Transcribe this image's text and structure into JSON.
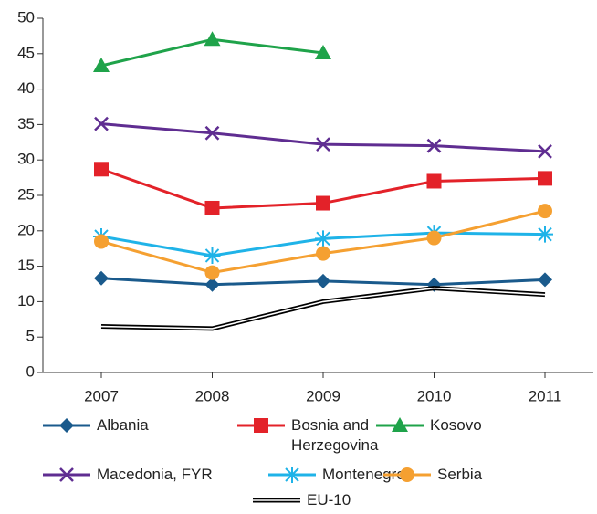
{
  "chart_data": {
    "type": "line",
    "categories": [
      "2007",
      "2008",
      "2009",
      "2010",
      "2011"
    ],
    "ylim": [
      0,
      50
    ],
    "yticks": [
      0,
      5,
      10,
      15,
      20,
      25,
      30,
      35,
      40,
      45,
      50
    ],
    "grid": false,
    "series": [
      {
        "name": "Albania",
        "color": "#1a5a8c",
        "marker": "diamond",
        "values": [
          13.3,
          12.4,
          12.9,
          12.4,
          13.1
        ]
      },
      {
        "name": "Bosnia and Herzegovina",
        "color": "#e32229",
        "marker": "square",
        "values": [
          28.7,
          23.2,
          23.9,
          27.0,
          27.4
        ]
      },
      {
        "name": "Kosovo",
        "color": "#1fa34a",
        "marker": "triangle",
        "values": [
          43.3,
          47.0,
          45.1,
          null,
          null
        ]
      },
      {
        "name": "Macedonia, FYR",
        "color": "#5f2d91",
        "marker": "x",
        "values": [
          35.1,
          33.8,
          32.2,
          32.0,
          31.2
        ]
      },
      {
        "name": "Montenegro",
        "color": "#1fb3e8",
        "marker": "asterisk",
        "values": [
          19.2,
          16.5,
          18.9,
          19.7,
          19.5
        ]
      },
      {
        "name": "Serbia",
        "color": "#f5a031",
        "marker": "circle",
        "values": [
          18.5,
          14.1,
          16.8,
          19.0,
          22.8
        ]
      },
      {
        "name": "EU-10",
        "color": "#000000",
        "marker": "none",
        "style": "double",
        "values": [
          6.5,
          6.2,
          10.0,
          11.9,
          11.0
        ]
      }
    ]
  }
}
